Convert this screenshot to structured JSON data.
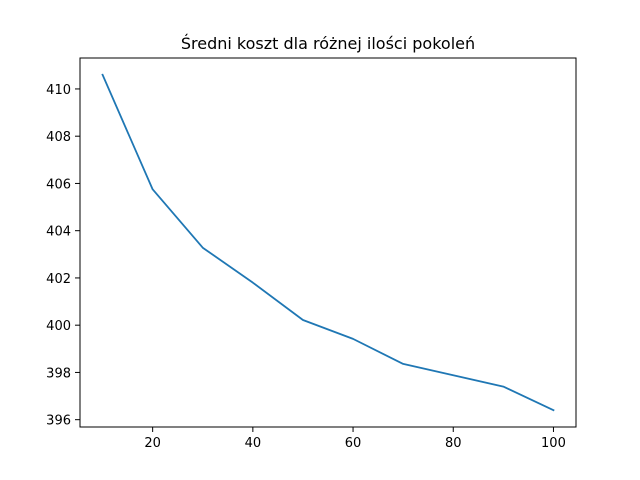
{
  "chart_data": {
    "type": "line",
    "title": "Średni koszt dla różnej ilości pokoleń",
    "xlabel": "",
    "ylabel": "",
    "x": [
      10,
      20,
      30,
      40,
      50,
      60,
      70,
      80,
      90,
      100
    ],
    "series": [
      {
        "values": [
          410.6,
          405.75,
          403.28,
          401.8,
          400.22,
          399.42,
          398.36,
          397.88,
          397.4,
          396.4
        ],
        "color": "#1f77b4"
      }
    ],
    "xlim": [
      5.5,
      104.5
    ],
    "ylim": [
      395.69,
      411.31
    ],
    "xticks": [
      {
        "value": 20,
        "label": "20"
      },
      {
        "value": 40,
        "label": "40"
      },
      {
        "value": 60,
        "label": "60"
      },
      {
        "value": 80,
        "label": "80"
      },
      {
        "value": 100,
        "label": "100"
      }
    ],
    "yticks": [
      {
        "value": 396,
        "label": "396"
      },
      {
        "value": 398,
        "label": "398"
      },
      {
        "value": 400,
        "label": "400"
      },
      {
        "value": 402,
        "label": "402"
      },
      {
        "value": 404,
        "label": "404"
      },
      {
        "value": 406,
        "label": "406"
      },
      {
        "value": 408,
        "label": "408"
      },
      {
        "value": 410,
        "label": "410"
      }
    ],
    "grid": false,
    "legend": "none"
  }
}
